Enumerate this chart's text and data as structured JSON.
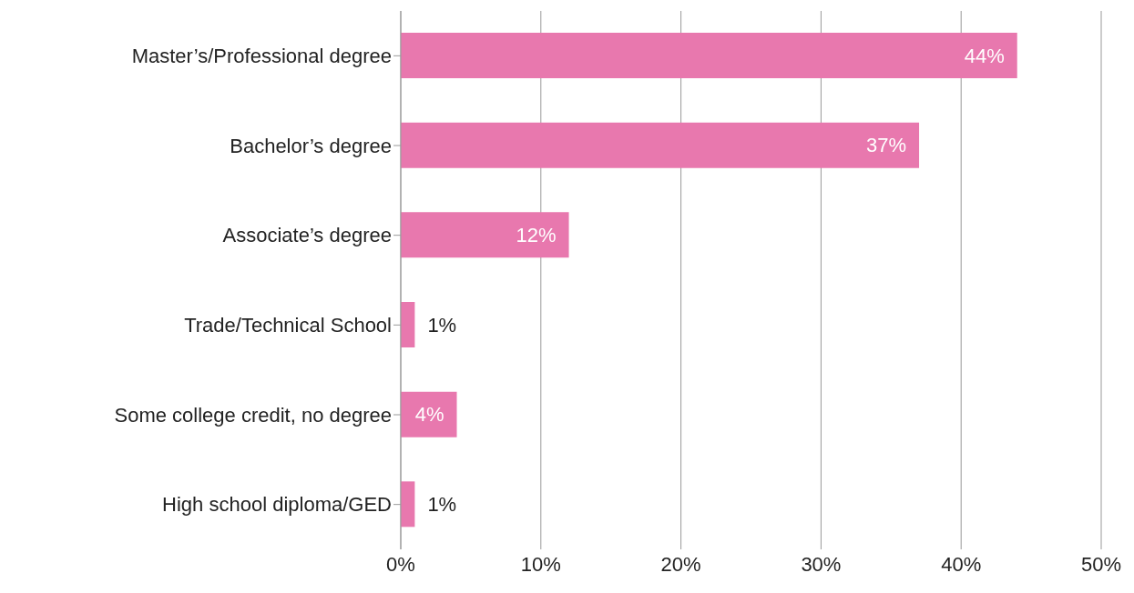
{
  "chart_data": {
    "type": "bar",
    "orientation": "horizontal",
    "categories": [
      "Master’s/Professional degree",
      "Bachelor’s degree",
      "Associate’s degree",
      "Trade/Technical School",
      "Some college credit, no degree",
      "High school diploma/GED"
    ],
    "values": [
      44,
      37,
      12,
      1,
      4,
      1
    ],
    "value_labels": [
      "44%",
      "37%",
      "12%",
      "1%",
      "4%",
      "1%"
    ],
    "color": "#e878ae",
    "xlim": [
      0,
      50
    ],
    "xticks": [
      {
        "value": 0,
        "label": "0%"
      },
      {
        "value": 10,
        "label": "10%"
      },
      {
        "value": 20,
        "label": "20%"
      },
      {
        "value": 30,
        "label": "30%"
      },
      {
        "value": 40,
        "label": "40%"
      },
      {
        "value": 50,
        "label": "50%"
      }
    ],
    "grid": "x",
    "legend": false
  }
}
